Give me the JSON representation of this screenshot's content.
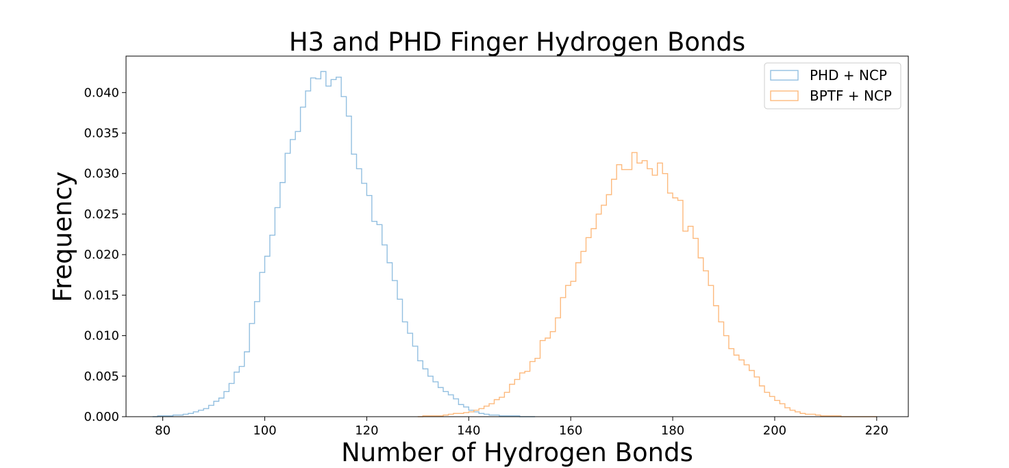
{
  "chart_data": {
    "type": "histogram-step",
    "title": "H3 and PHD Finger Hydrogen Bonds",
    "xlabel": "Number of Hydrogen Bonds",
    "ylabel": "Frequency",
    "xlim": [
      72.8,
      226.2
    ],
    "ylim": [
      0,
      0.0445
    ],
    "xticks": [
      80,
      100,
      120,
      140,
      160,
      180,
      200,
      220
    ],
    "yticks": [
      0.0,
      0.005,
      0.01,
      0.015,
      0.02,
      0.025,
      0.03,
      0.035,
      0.04
    ],
    "ytick_labels": [
      "0.000",
      "0.005",
      "0.010",
      "0.015",
      "0.020",
      "0.025",
      "0.030",
      "0.035",
      "0.040"
    ],
    "legend_position": "upper right",
    "series": [
      {
        "name": "PHD + NCP",
        "color": "#92bfe0",
        "x": [
          78,
          79,
          80,
          81,
          82,
          83,
          84,
          85,
          86,
          87,
          88,
          89,
          90,
          91,
          92,
          93,
          94,
          95,
          96,
          97,
          98,
          99,
          100,
          101,
          102,
          103,
          104,
          105,
          106,
          107,
          108,
          109,
          110,
          111,
          112,
          113,
          114,
          115,
          116,
          117,
          118,
          119,
          120,
          121,
          122,
          123,
          124,
          125,
          126,
          127,
          128,
          129,
          130,
          131,
          132,
          133,
          134,
          135,
          136,
          137,
          138,
          139,
          140,
          141,
          142,
          143,
          144,
          145,
          146,
          147,
          148,
          149,
          150,
          151,
          152
        ],
        "values": [
          0.0,
          0.0001,
          0.0001,
          0.0001,
          0.0002,
          0.0002,
          0.0003,
          0.0004,
          0.0006,
          0.0008,
          0.001,
          0.0014,
          0.0019,
          0.0023,
          0.0031,
          0.0041,
          0.0055,
          0.0062,
          0.008,
          0.0115,
          0.0142,
          0.0178,
          0.0198,
          0.0224,
          0.0258,
          0.0289,
          0.0325,
          0.0342,
          0.0352,
          0.0382,
          0.0402,
          0.0418,
          0.0417,
          0.0426,
          0.0408,
          0.0416,
          0.0419,
          0.0395,
          0.0371,
          0.0324,
          0.0306,
          0.0288,
          0.0273,
          0.0241,
          0.0237,
          0.0212,
          0.019,
          0.0168,
          0.0145,
          0.0117,
          0.0103,
          0.0087,
          0.0069,
          0.0059,
          0.005,
          0.0043,
          0.0036,
          0.0031,
          0.0027,
          0.0022,
          0.0015,
          0.0012,
          0.0008,
          0.0006,
          0.0004,
          0.0003,
          0.0002,
          0.0002,
          0.0001,
          0.0001,
          0.0001,
          0.0001,
          0.0,
          0.0,
          0.0
        ]
      },
      {
        "name": "BPTF + NCP",
        "color": "#fdb97c",
        "x": [
          130,
          131,
          132,
          133,
          134,
          135,
          136,
          137,
          138,
          139,
          140,
          141,
          142,
          143,
          144,
          145,
          146,
          147,
          148,
          149,
          150,
          151,
          152,
          153,
          154,
          155,
          156,
          157,
          158,
          159,
          160,
          161,
          162,
          163,
          164,
          165,
          166,
          167,
          168,
          169,
          170,
          171,
          172,
          173,
          174,
          175,
          176,
          177,
          178,
          179,
          180,
          181,
          182,
          183,
          184,
          185,
          186,
          187,
          188,
          189,
          190,
          191,
          192,
          193,
          194,
          195,
          196,
          197,
          198,
          199,
          200,
          201,
          202,
          203,
          204,
          205,
          206,
          207,
          208,
          209,
          210,
          211,
          212,
          213,
          214,
          215,
          216,
          217,
          218,
          219
        ],
        "values": [
          0.0,
          0.0001,
          0.0001,
          0.0001,
          0.0001,
          0.0002,
          0.0003,
          0.0004,
          0.0004,
          0.0005,
          0.0006,
          0.0008,
          0.001,
          0.0013,
          0.0016,
          0.0021,
          0.0024,
          0.003,
          0.004,
          0.0046,
          0.0054,
          0.0056,
          0.0068,
          0.0072,
          0.0094,
          0.0097,
          0.0105,
          0.0122,
          0.0147,
          0.0162,
          0.0167,
          0.019,
          0.0204,
          0.0221,
          0.0232,
          0.025,
          0.0261,
          0.0274,
          0.0293,
          0.0311,
          0.0305,
          0.0305,
          0.0326,
          0.0313,
          0.0316,
          0.0306,
          0.0298,
          0.0313,
          0.03,
          0.0276,
          0.027,
          0.0267,
          0.0229,
          0.0235,
          0.022,
          0.0196,
          0.018,
          0.0162,
          0.0137,
          0.0117,
          0.01,
          0.0084,
          0.0076,
          0.007,
          0.0064,
          0.0057,
          0.0049,
          0.0038,
          0.003,
          0.0025,
          0.002,
          0.0016,
          0.0011,
          0.0008,
          0.0006,
          0.0004,
          0.0003,
          0.0003,
          0.0002,
          0.0001,
          0.0001,
          0.0001,
          0.0001,
          0.0,
          0.0,
          0.0,
          0.0,
          0.0,
          0.0,
          0.0
        ]
      }
    ]
  }
}
